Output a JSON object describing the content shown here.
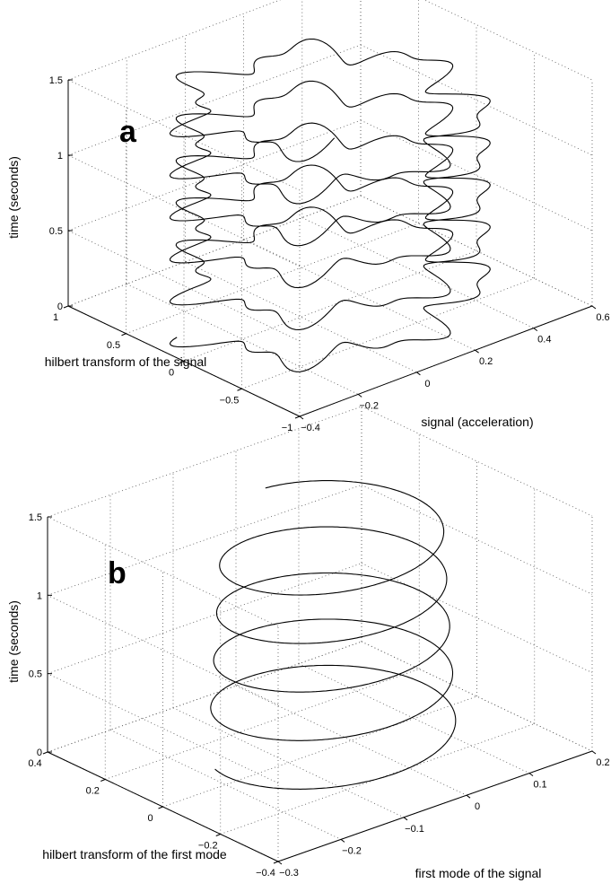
{
  "chart_data": [
    {
      "type": "line3d",
      "panel_label": "a",
      "xlabel": "signal (acceleration)",
      "ylabel": "hilbert transform of the signal",
      "zlabel": "time (seconds)",
      "xlim": [
        -0.4,
        0.6
      ],
      "ylim": [
        -1,
        1
      ],
      "zlim": [
        0,
        1.5
      ],
      "xticks": [
        "−0.4",
        "−0.2",
        "0",
        "0.2",
        "0.4",
        "0.6"
      ],
      "yticks": [
        "−1",
        "−0.5",
        "0",
        "0.5",
        "1"
      ],
      "zticks": [
        "0",
        "0.5",
        "1",
        "1.5"
      ],
      "grid": true,
      "series": [
        {
          "description_of_shape": "irregular spiral, amplitude ~0.35",
          "t_start": 0.0,
          "t_end": 1.45,
          "periods": 5.2,
          "x_center": 0.1,
          "x_amplitude": 0.38,
          "y_center": 0.0,
          "y_amplitude": 0.75
        }
      ]
    },
    {
      "type": "line3d",
      "panel_label": "b",
      "xlabel": "first mode of the signal",
      "ylabel": "hilbert transform of the first mode",
      "zlabel": "time (seconds)",
      "xlim": [
        -0.3,
        0.2
      ],
      "ylim": [
        -0.4,
        0.4
      ],
      "zlim": [
        0,
        1.5
      ],
      "xticks": [
        "−0.3",
        "−0.2",
        "−0.1",
        "0",
        "0.1",
        "0.2"
      ],
      "yticks": [
        "−0.4",
        "−0.2",
        "0",
        "0.2",
        "0.4"
      ],
      "zticks": [
        "0",
        "0.5",
        "1",
        "1.5"
      ],
      "grid": true,
      "series": [
        {
          "t_start": 0.0,
          "t_end": 1.45,
          "periods": 4.8,
          "x_center": -0.03,
          "x_amplitude": 0.15,
          "y_center": 0.0,
          "y_amplitude": 0.25
        }
      ]
    }
  ]
}
